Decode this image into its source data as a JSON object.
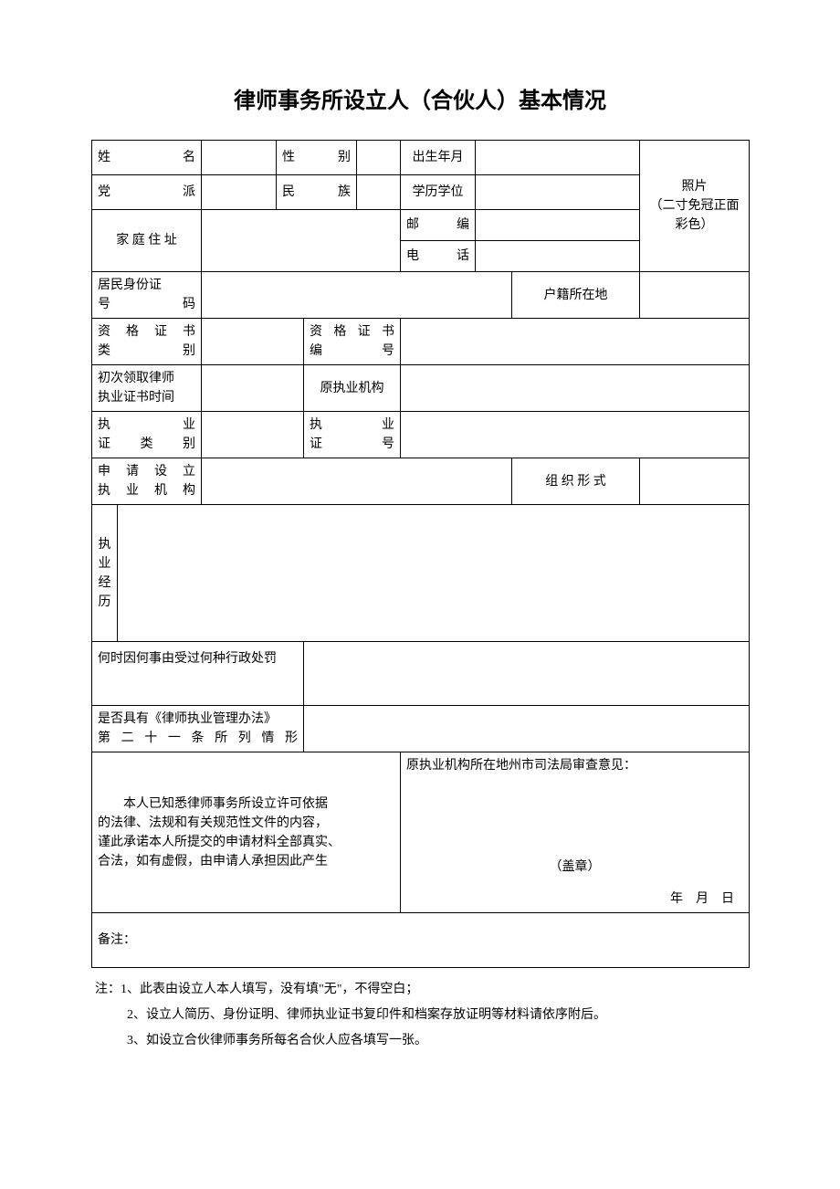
{
  "title": "律师事务所设立人（合伙人）基本情况",
  "labels": {
    "name": "姓　　　名",
    "gender": "性　别",
    "birth": "出生年月",
    "party": "党　　　派",
    "ethnic": "民　族",
    "education": "学历学位",
    "photo_line1": "照片",
    "photo_line2": "（二寸免冠正面彩色）",
    "address": "家 庭 住 址",
    "postcode": "邮　　编",
    "phone": "电　　话",
    "id_line1": "居民身份证",
    "id_line2": "号　　　码",
    "household": "户籍所在地",
    "cert_type_line1": "资 格 证 书",
    "cert_type_line2": "类　　　别",
    "cert_no_line1": "资 格 证 书",
    "cert_no_line2": "编　　　号",
    "first_license_line1": "初次领取律师",
    "first_license_line2": "执业证书时间",
    "orig_org": "原执业机构",
    "practice_type_line1": "执　　　业",
    "practice_type_line2": "证　类　别",
    "practice_no_line1": "执　　业",
    "practice_no_line2": "证　　号",
    "apply_org_line1": "申 请 设 立",
    "apply_org_line2": "执 业 机 构",
    "org_form": "组 织 形 式",
    "experience": "执业经历",
    "penalty": "何时因何事由受过何种行政处罚",
    "article21_line1": "是否具有《律师执业管理办法》",
    "article21_line2": "第 二 十 一 条 所 列 情 形",
    "remark": "备注："
  },
  "declaration": {
    "line1": "本人已知悉律师事务所设立许可依据",
    "line2": "的法律、法规和有关规范性文件的内容，",
    "line3": "谨此承诺本人所提交的申请材料全部真实、",
    "line4": "合法，如有虚假，由申请人承担因此产生"
  },
  "review": {
    "header": "原执业机构所在地州市司法局审查意见：",
    "stamp": "（盖章）",
    "date": "年　月　日"
  },
  "notes": {
    "prefix": "注：",
    "n1": "1、此表由设立人本人填写，没有填\"无\"，不得空白；",
    "n2": "2、设立人简历、身份证明、律师执业证书复印件和档案存放证明等材料请依序附后。",
    "n3": "3、如设立合伙律师事务所每名合伙人应各填写一张。"
  },
  "values": {
    "name": "",
    "gender": "",
    "birth": "",
    "party": "",
    "ethnic": "",
    "education": "",
    "address": "",
    "postcode": "",
    "phone": "",
    "id_number": "",
    "household": "",
    "cert_type": "",
    "cert_no": "",
    "first_license": "",
    "orig_org": "",
    "practice_type": "",
    "practice_no": "",
    "apply_org": "",
    "org_form": "",
    "experience": "",
    "penalty": "",
    "article21": "",
    "remark": ""
  }
}
